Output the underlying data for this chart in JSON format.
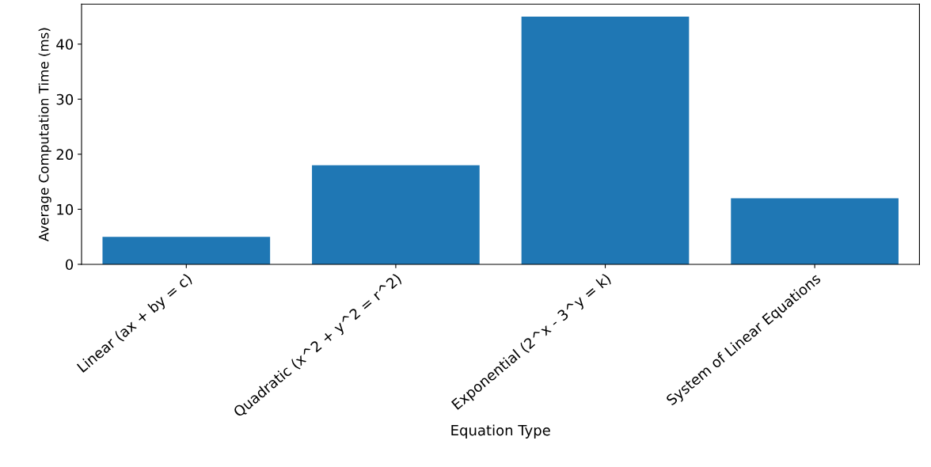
{
  "chart_data": {
    "type": "bar",
    "xlabel": "Equation Type",
    "ylabel": "Average Computation Time (ms)",
    "categories": [
      "Linear (ax + by = c)",
      "Quadratic (x^2 + y^2 = r^2)",
      "Exponential (2^x - 3^y = k)",
      "System of Linear Equations"
    ],
    "values": [
      5,
      18,
      45,
      12
    ],
    "color": "#1f77b4",
    "ylim": [
      0,
      47.25
    ],
    "yticks": [
      0,
      10,
      20,
      30,
      40
    ],
    "grid": false
  }
}
